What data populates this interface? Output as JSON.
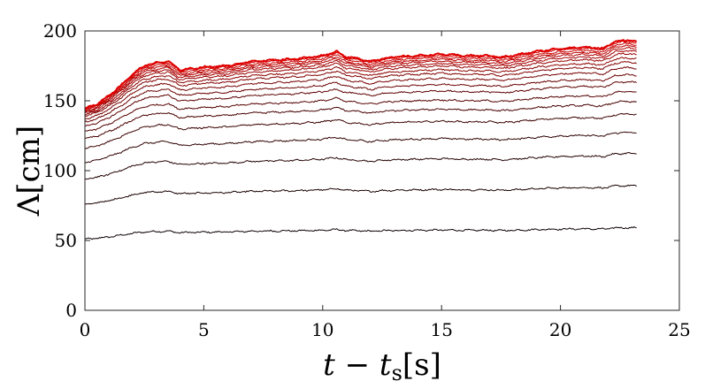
{
  "chart_data": {
    "type": "line",
    "xlabel": "t − t_s[s]",
    "ylabel": "Λ[cm]",
    "xlim": [
      0,
      25
    ],
    "ylim": [
      0,
      200
    ],
    "xticks": [
      0,
      5,
      10,
      15,
      20,
      25
    ],
    "yticks": [
      0,
      50,
      100,
      150,
      200
    ],
    "grid": false,
    "box": true,
    "x_end": 23.2,
    "color_scale": [
      "#000000",
      "#e00000"
    ],
    "shape_knots": [
      [
        0,
        0.0
      ],
      [
        0.5,
        0.03
      ],
      [
        1.0,
        0.09
      ],
      [
        1.5,
        0.16
      ],
      [
        2.0,
        0.24
      ],
      [
        2.5,
        0.3
      ],
      [
        3.0,
        0.32
      ],
      [
        3.5,
        0.33
      ],
      [
        4.0,
        0.27
      ],
      [
        4.5,
        0.28
      ],
      [
        5.0,
        0.29
      ],
      [
        6.0,
        0.3
      ],
      [
        7.0,
        0.33
      ],
      [
        8.0,
        0.34
      ],
      [
        9.0,
        0.35
      ],
      [
        10.0,
        0.37
      ],
      [
        10.6,
        0.4
      ],
      [
        11.0,
        0.36
      ],
      [
        11.5,
        0.35
      ],
      [
        12.0,
        0.33
      ],
      [
        12.5,
        0.35
      ],
      [
        13.0,
        0.36
      ],
      [
        14.0,
        0.37
      ],
      [
        15.0,
        0.38
      ],
      [
        16.0,
        0.37
      ],
      [
        17.0,
        0.37
      ],
      [
        17.5,
        0.36
      ],
      [
        18.0,
        0.37
      ],
      [
        19.0,
        0.4
      ],
      [
        20.0,
        0.42
      ],
      [
        21.0,
        0.43
      ],
      [
        21.8,
        0.42
      ],
      [
        22.3,
        0.47
      ],
      [
        22.8,
        0.48
      ],
      [
        23.2,
        0.47
      ]
    ],
    "series": [
      {
        "values": [
          0,
          0
        ]
      },
      {
        "values": [
          51,
          59
        ]
      },
      {
        "values": [
          76,
          89
        ]
      },
      {
        "values": [
          94,
          112
        ]
      },
      {
        "values": [
          106,
          127
        ]
      },
      {
        "values": [
          116,
          140
        ]
      },
      {
        "values": [
          123,
          149
        ]
      },
      {
        "values": [
          128,
          156
        ]
      },
      {
        "values": [
          132,
          163
        ]
      },
      {
        "values": [
          135,
          168
        ]
      },
      {
        "values": [
          137,
          173
        ]
      },
      {
        "values": [
          139,
          177
        ]
      },
      {
        "values": [
          140,
          180
        ]
      },
      {
        "values": [
          141,
          183
        ]
      },
      {
        "values": [
          142,
          185
        ]
      },
      {
        "values": [
          142.5,
          187
        ]
      },
      {
        "values": [
          143,
          188.5
        ]
      },
      {
        "values": [
          143.5,
          190
        ]
      },
      {
        "values": [
          144,
          191.5
        ]
      },
      {
        "values": [
          144.5,
          192.5
        ]
      }
    ]
  }
}
